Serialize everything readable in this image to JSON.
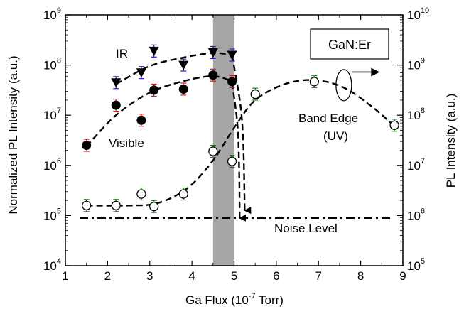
{
  "chart_data": {
    "type": "scatter",
    "title": "",
    "xlabel": "Ga Flux (10",
    "xlabel_exp": "-7",
    "xlabel_tail": " Torr)",
    "ylabel_left": "Normalized  PL Intensity (a.u.)",
    "ylabel_right": "PL Intensity (a.u.)",
    "xlim": [
      1,
      9
    ],
    "x_ticks": [
      "1",
      "2",
      "3",
      "4",
      "5",
      "6",
      "7",
      "8",
      "9"
    ],
    "ylim_left_exp": [
      4,
      9
    ],
    "ylim_right_exp": [
      5,
      10
    ],
    "y_scale": "log",
    "y_left_tick_base": "10",
    "y_left_tick_exps": [
      "4",
      "5",
      "6",
      "7",
      "8",
      "9"
    ],
    "y_right_tick_exps": [
      "5",
      "6",
      "7",
      "8",
      "9",
      "10"
    ],
    "legend_box": "GaN:Er",
    "shaded_band": {
      "x": [
        4.5,
        5.0
      ],
      "color": "#a6a6a6"
    },
    "noise_level": {
      "y_left_exp": 4.95,
      "label": "Noise Level"
    },
    "annotations": {
      "ir": "IR",
      "visible": "Visible",
      "band_edge_1": "Band Edge",
      "band_edge_2": "(UV)"
    },
    "series": [
      {
        "marker": "triangle-down-filled",
        "axis": "left",
        "errorbar_color": "#1f1fbf",
        "points": [
          {
            "x": 2.2,
            "y_exp": 7.65
          },
          {
            "x": 2.8,
            "y_exp": 7.85
          },
          {
            "x": 3.1,
            "y_exp": 8.28
          },
          {
            "x": 3.8,
            "y_exp": 8.0
          },
          {
            "x": 4.5,
            "y_exp": 8.25
          },
          {
            "x": 4.95,
            "y_exp": 8.2
          }
        ]
      },
      {
        "marker": "circle-filled",
        "axis": "left",
        "errorbar_color": "#cc1f1f",
        "points": [
          {
            "x": 1.5,
            "y_exp": 6.4
          },
          {
            "x": 2.2,
            "y_exp": 7.2
          },
          {
            "x": 2.8,
            "y_exp": 6.9
          },
          {
            "x": 3.1,
            "y_exp": 7.5
          },
          {
            "x": 3.8,
            "y_exp": 7.52
          },
          {
            "x": 4.5,
            "y_exp": 7.8
          },
          {
            "x": 4.95,
            "y_exp": 7.67
          }
        ]
      },
      {
        "marker": "circle-open",
        "axis": "right",
        "errorbar_color": "#1f7a1f",
        "points": [
          {
            "x": 1.5,
            "y_exp": 6.2
          },
          {
            "x": 2.2,
            "y_exp": 6.2
          },
          {
            "x": 2.8,
            "y_exp": 6.43
          },
          {
            "x": 3.1,
            "y_exp": 6.18
          },
          {
            "x": 3.8,
            "y_exp": 6.43
          },
          {
            "x": 4.5,
            "y_exp": 7.28
          },
          {
            "x": 4.95,
            "y_exp": 7.08
          },
          {
            "x": 5.5,
            "y_exp": 8.42
          },
          {
            "x": 6.9,
            "y_exp": 8.67
          },
          {
            "x": 8.8,
            "y_exp": 7.8
          }
        ]
      }
    ],
    "trend_curves": {
      "ir": [
        [
          2.2,
          7.62
        ],
        [
          3.0,
          7.98
        ],
        [
          3.8,
          8.15
        ],
        [
          4.5,
          8.24
        ],
        [
          4.95,
          8.2
        ]
      ],
      "visible": [
        [
          1.5,
          6.38
        ],
        [
          2.2,
          7.0
        ],
        [
          3.0,
          7.45
        ],
        [
          3.8,
          7.68
        ],
        [
          4.5,
          7.78
        ],
        [
          4.95,
          7.68
        ]
      ],
      "uv": [
        [
          1.5,
          6.2
        ],
        [
          2.5,
          6.2
        ],
        [
          3.2,
          6.25
        ],
        [
          3.9,
          6.55
        ],
        [
          4.5,
          7.1
        ],
        [
          5.0,
          7.75
        ],
        [
          5.5,
          8.3
        ],
        [
          6.2,
          8.62
        ],
        [
          6.9,
          8.7
        ],
        [
          7.6,
          8.55
        ],
        [
          8.3,
          8.15
        ],
        [
          8.8,
          7.78
        ]
      ],
      "drop_ir": [
        [
          4.95,
          8.2
        ],
        [
          5.15,
          7.2
        ],
        [
          5.22,
          6.35
        ],
        [
          5.25,
          5.1
        ]
      ],
      "drop_visible": [
        [
          4.95,
          7.65
        ],
        [
          5.08,
          6.8
        ],
        [
          5.12,
          5.85
        ],
        [
          5.13,
          4.95
        ]
      ]
    }
  }
}
